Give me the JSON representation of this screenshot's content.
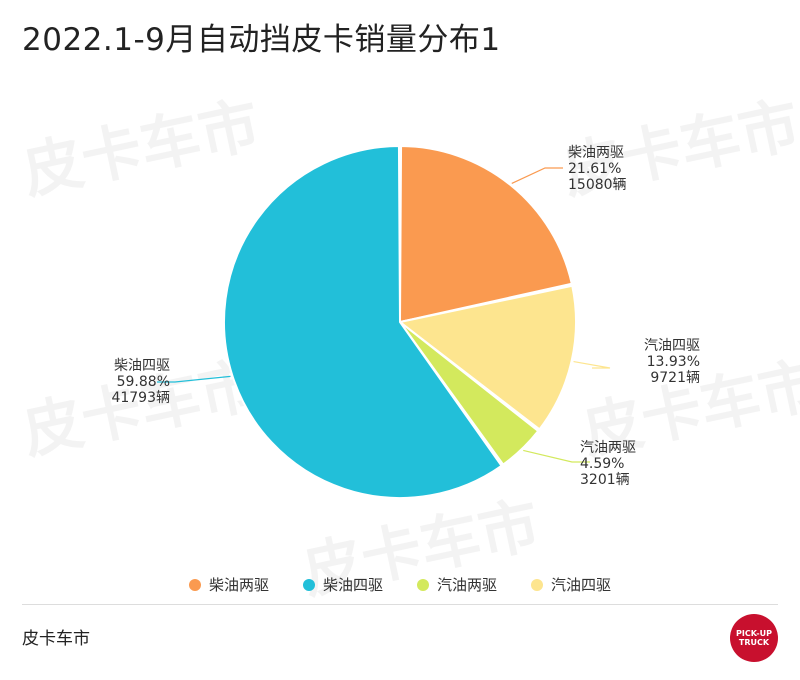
{
  "title": "2022.1-9月自动挡皮卡销量分布1",
  "footer": {
    "source": "皮卡车市"
  },
  "logo": {
    "line1": "PICK-UP",
    "line2": "TRUCK"
  },
  "watermark": "皮卡车市",
  "chart_data": {
    "type": "pie",
    "title": "2022.1-9月自动挡皮卡销量分布1",
    "legend_position": "bottom",
    "slices": [
      {
        "name": "柴油两驱",
        "value": 15080,
        "percent": "21.61%",
        "count_label": "15080辆",
        "color": "#fa9a50"
      },
      {
        "name": "汽油四驱",
        "value": 9721,
        "percent": "13.93%",
        "count_label": "9721辆",
        "color": "#fde58f"
      },
      {
        "name": "汽油两驱",
        "value": 3201,
        "percent": "4.59%",
        "count_label": "3201辆",
        "color": "#d3e95d"
      },
      {
        "name": "柴油四驱",
        "value": 41793,
        "percent": "59.88%",
        "count_label": "41793辆",
        "color": "#22bfd9"
      }
    ],
    "legend": [
      "柴油两驱",
      "柴油四驱",
      "汽油两驱",
      "汽油四驱"
    ]
  }
}
